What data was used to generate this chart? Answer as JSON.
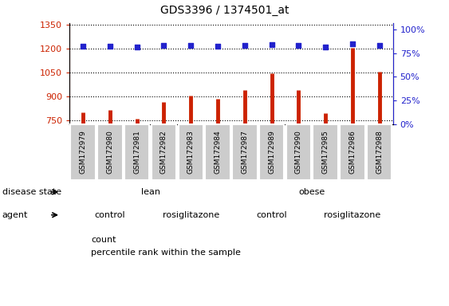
{
  "title": "GDS3396 / 1374501_at",
  "samples": [
    "GSM172979",
    "GSM172980",
    "GSM172981",
    "GSM172982",
    "GSM172983",
    "GSM172984",
    "GSM172987",
    "GSM172989",
    "GSM172990",
    "GSM172985",
    "GSM172986",
    "GSM172988"
  ],
  "bar_values": [
    800,
    815,
    760,
    865,
    905,
    885,
    940,
    1048,
    940,
    795,
    1205,
    1055
  ],
  "dot_values_left": [
    1215,
    1215,
    1210,
    1218,
    1220,
    1215,
    1218,
    1225,
    1218,
    1212,
    1228,
    1222
  ],
  "ylim_left": [
    730,
    1360
  ],
  "yticks_left": [
    750,
    900,
    1050,
    1200,
    1350
  ],
  "ylim_right": [
    0,
    107
  ],
  "yticks_right": [
    0,
    25,
    50,
    75,
    100
  ],
  "yticklabels_right": [
    "0%",
    "25%",
    "50%",
    "75%",
    "100%"
  ],
  "bar_color": "#cc2200",
  "dot_color": "#2222cc",
  "disease_state_groups": [
    {
      "label": "lean",
      "start": 0,
      "end": 6,
      "color": "#aaffaa"
    },
    {
      "label": "obese",
      "start": 6,
      "end": 12,
      "color": "#22dd55"
    }
  ],
  "agent_groups": [
    {
      "label": "control",
      "start": 0,
      "end": 3,
      "color": "#eeaaee"
    },
    {
      "label": "rosiglitazone",
      "start": 3,
      "end": 6,
      "color": "#cc55cc"
    },
    {
      "label": "control",
      "start": 6,
      "end": 9,
      "color": "#eeaaee"
    },
    {
      "label": "rosiglitazone",
      "start": 9,
      "end": 12,
      "color": "#cc55cc"
    }
  ],
  "legend_items": [
    {
      "label": "count",
      "color": "#cc2200"
    },
    {
      "label": "percentile rank within the sample",
      "color": "#2222cc"
    }
  ],
  "background_color": "#ffffff",
  "tick_label_color_left": "#cc2200",
  "tick_label_color_right": "#2222cc",
  "plot_bg_color": "#ffffff",
  "xtick_bg_color": "#cccccc"
}
